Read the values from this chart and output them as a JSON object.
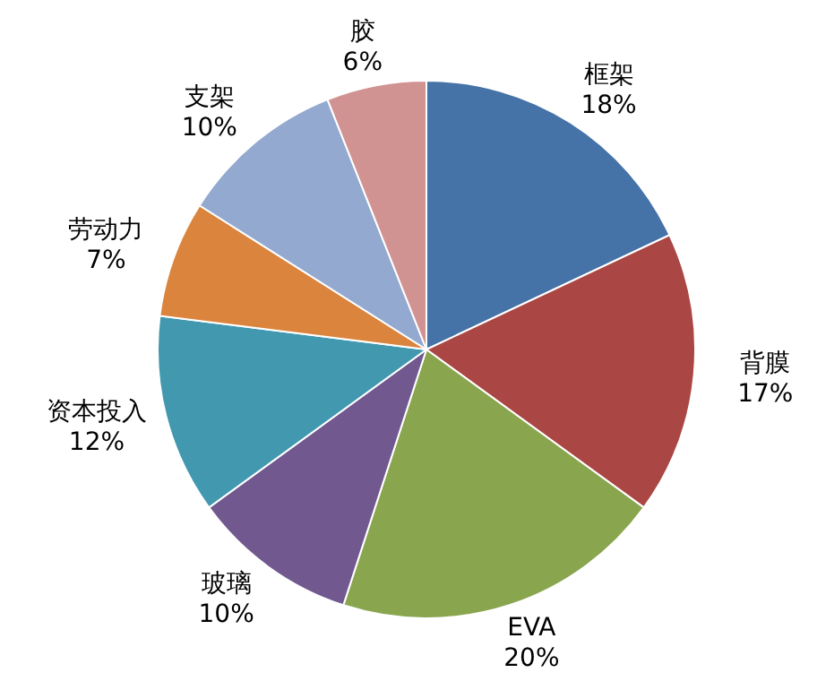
{
  "chart_data": {
    "type": "pie",
    "categories": [
      "框架",
      "背膜",
      "EVA",
      "玻璃",
      "资本投入",
      "劳动力",
      "支架",
      "胶"
    ],
    "values": [
      18,
      17,
      20,
      10,
      12,
      7,
      10,
      6
    ],
    "colors": [
      "#4572a7",
      "#aa4643",
      "#89a54e",
      "#71588f",
      "#4198af",
      "#db843d",
      "#93a9cf",
      "#d19392"
    ],
    "value_labels": [
      "18%",
      "17%",
      "20%",
      "10%",
      "12%",
      "7%",
      "10%",
      "6%"
    ]
  }
}
